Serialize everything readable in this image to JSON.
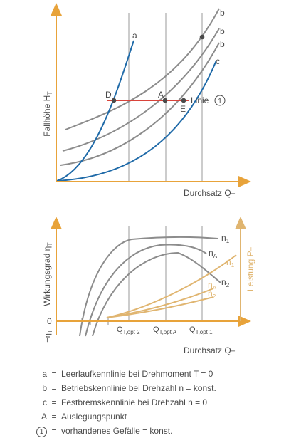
{
  "top_diagram": {
    "y_axis_label": "Fallhöhe H",
    "y_axis_sub": "T",
    "x_axis_label": "Durchsatz Q",
    "x_axis_sub": "T",
    "curve_labels": {
      "a": "a",
      "b1": "b",
      "b2": "b",
      "b3": "b",
      "c": "c"
    },
    "points": {
      "D": "D",
      "A": "A",
      "E": "E"
    },
    "line_label": "Linie",
    "line_number": "1"
  },
  "bottom_diagram": {
    "y_axis_label": "Wirkungsgrad η",
    "y_axis_sub": "T",
    "right_axis_label": "Leistung P",
    "right_axis_sub": "T",
    "x_axis_label": "Durchsatz Q",
    "x_axis_sub": "T",
    "zero_label": "0",
    "neg_label": "−η",
    "neg_sub": "T",
    "q_opt": [
      {
        "main": "Q",
        "sub": "T,opt 2"
      },
      {
        "main": "Q",
        "sub": "T,opt A"
      },
      {
        "main": "Q",
        "sub": "T,opt 1"
      }
    ],
    "gray_labels": [
      {
        "main": "n",
        "sub": "1"
      },
      {
        "main": "n",
        "sub": "A"
      },
      {
        "main": "n",
        "sub": "2"
      }
    ],
    "gold_labels": [
      {
        "main": "n",
        "sub": "1"
      },
      {
        "main": "n",
        "sub": "A"
      },
      {
        "main": "n",
        "sub": "2"
      }
    ]
  },
  "legend": [
    {
      "key": "a",
      "eq": "=",
      "text": "Leerlaufkennlinie bei Drehmoment T = 0"
    },
    {
      "key": "b",
      "eq": "=",
      "text": "Betriebskennlinie bei Drehzahl n = konst."
    },
    {
      "key": "c",
      "eq": "=",
      "text": "Festbremskennlinie bei Drehzahl n = 0"
    },
    {
      "key": "A",
      "eq": "=",
      "text": "Auslegungspunkt"
    },
    {
      "key": "1",
      "eq": "=",
      "text": "vorhandenes Gefälle = konst.",
      "circled": true
    }
  ],
  "colors": {
    "axis": "#e8a33a",
    "gray": "#8c8c8c",
    "blue": "#1f6aa8",
    "red": "#d9443b",
    "gold": "#e0b570",
    "text": "#4a4a4a"
  }
}
